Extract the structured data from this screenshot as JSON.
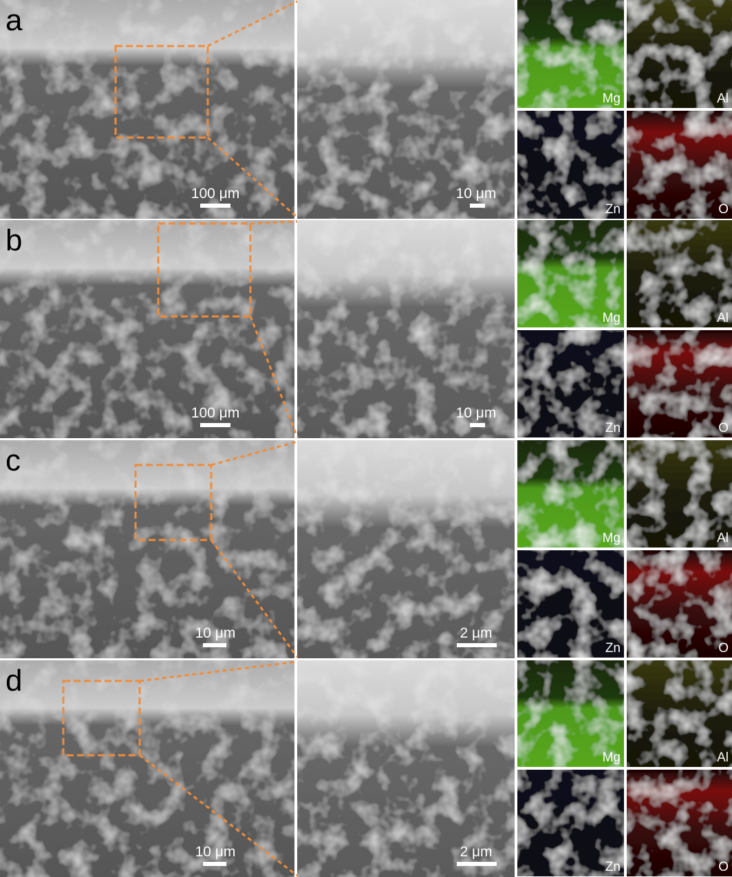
{
  "panels": [
    {
      "label": "a",
      "overview_scale": "100 μm",
      "zoom_scale": "10 μm",
      "maps": [
        "Mg",
        "Al",
        "Zn",
        "O"
      ]
    },
    {
      "label": "b",
      "overview_scale": "100 μm",
      "zoom_scale": "10 μm",
      "maps": [
        "Mg",
        "Al",
        "Zn",
        "O"
      ]
    },
    {
      "label": "c",
      "overview_scale": "10 μm",
      "zoom_scale": "2 μm",
      "maps": [
        "Mg",
        "Al",
        "Zn",
        "O"
      ]
    },
    {
      "label": "d",
      "overview_scale": "10 μm",
      "zoom_scale": "2 μm",
      "maps": [
        "Mg",
        "Al",
        "Zn",
        "O"
      ]
    }
  ]
}
